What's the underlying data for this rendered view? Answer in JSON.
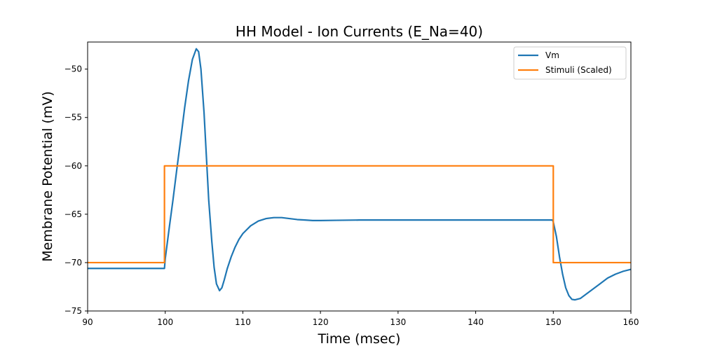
{
  "chart_data": {
    "type": "line",
    "title": "HH Model - Ion Currents (E_Na=40)",
    "xlabel": "Time (msec)",
    "ylabel": "Membrane Potential (mV)",
    "xlim": [
      90,
      160
    ],
    "ylim": [
      -75,
      -47.2
    ],
    "xticks": [
      90,
      100,
      110,
      120,
      130,
      140,
      150,
      160
    ],
    "yticks": [
      -75,
      -70,
      -65,
      -60,
      -55,
      -50
    ],
    "xtick_labels": [
      "90",
      "100",
      "110",
      "120",
      "130",
      "140",
      "150",
      "160"
    ],
    "ytick_labels": [
      "−75",
      "−70",
      "−65",
      "−60",
      "−55",
      "−50"
    ],
    "grid": false,
    "legend_position": "top-right",
    "series": [
      {
        "name": "Vm",
        "color": "#1f77b4",
        "x": [
          90,
          99.9,
          100,
          100.5,
          101,
          101.5,
          102,
          102.5,
          103,
          103.5,
          104,
          104.3,
          104.6,
          105,
          105.3,
          105.6,
          106,
          106.3,
          106.6,
          107,
          107.3,
          107.6,
          108,
          108.5,
          109,
          109.5,
          110,
          111,
          112,
          113,
          114,
          115,
          116,
          117,
          118,
          119,
          120,
          122,
          125,
          130,
          135,
          140,
          145,
          149.9,
          150,
          150.4,
          150.8,
          151.2,
          151.6,
          152,
          152.4,
          152.8,
          153.5,
          154,
          155,
          156,
          157,
          158,
          159,
          160
        ],
        "y": [
          -70.6,
          -70.6,
          -69.6,
          -66.5,
          -63.5,
          -60.3,
          -57.2,
          -54,
          -51.2,
          -49,
          -47.9,
          -48.2,
          -50,
          -54.5,
          -59,
          -63.5,
          -67.8,
          -70.5,
          -72.2,
          -72.9,
          -72.6,
          -71.8,
          -70.6,
          -69.4,
          -68.4,
          -67.6,
          -67,
          -66.2,
          -65.7,
          -65.45,
          -65.35,
          -65.35,
          -65.45,
          -65.55,
          -65.6,
          -65.65,
          -65.65,
          -65.63,
          -65.6,
          -65.6,
          -65.6,
          -65.6,
          -65.6,
          -65.6,
          -65.8,
          -67.3,
          -69.4,
          -71.2,
          -72.6,
          -73.4,
          -73.8,
          -73.85,
          -73.7,
          -73.4,
          -72.8,
          -72.2,
          -71.6,
          -71.2,
          -70.9,
          -70.7
        ]
      },
      {
        "name": "Stimuli (Scaled)",
        "color": "#ff7f0e",
        "x": [
          90,
          99.9,
          99.9,
          150,
          150,
          160
        ],
        "y": [
          -70,
          -70,
          -60,
          -60,
          -70,
          -70
        ]
      }
    ]
  }
}
